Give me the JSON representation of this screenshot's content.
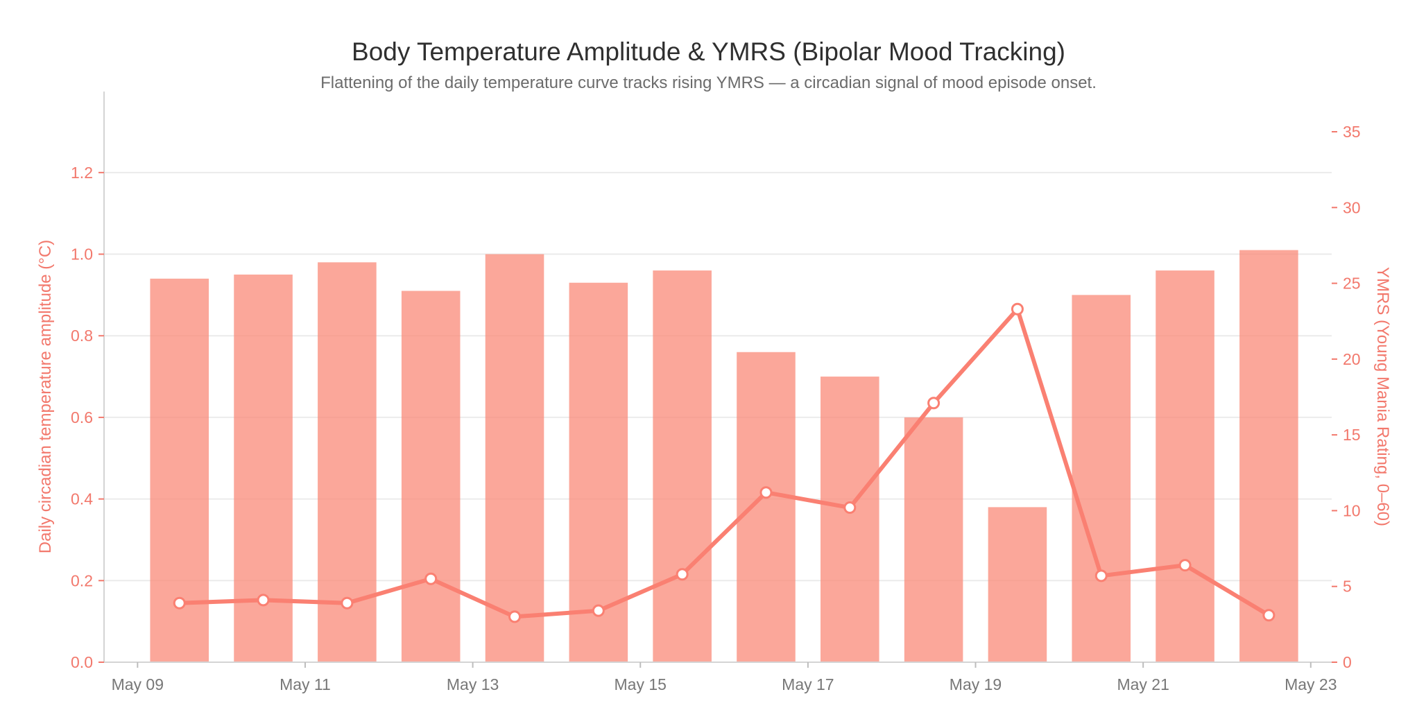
{
  "chart_data": {
    "type": "bar",
    "title": "Body Temperature Amplitude & YMRS (Bipolar Mood Tracking)",
    "subtitle": "Flattening of the daily temperature curve tracks rising YMRS — a circadian signal of mood episode onset.",
    "x_tick_labels": [
      "May 09",
      "May 11",
      "May 13",
      "May 15",
      "May 17",
      "May 19",
      "May 21",
      "May 23"
    ],
    "x_tick_days": [
      9,
      11,
      13,
      15,
      17,
      19,
      21,
      23
    ],
    "x_range_days": [
      8.6,
      23.25
    ],
    "y_left": {
      "label": "Daily circadian temperature amplitude (°C)",
      "ylim": [
        0,
        1.3
      ],
      "ticks": [
        0.0,
        0.2,
        0.4,
        0.6,
        0.8,
        1.0,
        1.2
      ],
      "tick_labels": [
        "0.0",
        "0.2",
        "0.4",
        "0.6",
        "0.8",
        "1.0",
        "1.2"
      ]
    },
    "y_right": {
      "label": "YMRS (Young Mania Rating, 0–60)",
      "ylim": [
        0,
        35
      ],
      "ticks": [
        0,
        5,
        10,
        15,
        20,
        25,
        30,
        35
      ],
      "tick_labels": [
        "0",
        "5",
        "10",
        "15",
        "20",
        "25",
        "30",
        "35"
      ]
    },
    "grid": true,
    "colors": {
      "bar": "#fa8a78",
      "line": "#fa8072",
      "left_axis": "#f2786c",
      "right_axis": "#f2786c",
      "x_tick": "#777777",
      "grid": "#ebebeb"
    },
    "series": [
      {
        "type": "bar",
        "axis": "left",
        "x_days": [
          9.5,
          10.5,
          11.5,
          12.5,
          13.5,
          14.5,
          15.5,
          16.5,
          17.5,
          18.5,
          19.5,
          20.5,
          21.5,
          22.5
        ],
        "values": [
          0.94,
          0.95,
          0.98,
          0.91,
          1.0,
          0.93,
          0.96,
          0.76,
          0.7,
          0.6,
          0.38,
          0.9,
          0.96,
          1.01
        ]
      },
      {
        "type": "line",
        "axis": "right",
        "x_days": [
          9.5,
          10.5,
          11.5,
          12.5,
          13.5,
          14.5,
          15.5,
          16.5,
          17.5,
          18.5,
          19.5,
          20.5,
          21.5,
          22.5
        ],
        "values": [
          3.9,
          4.1,
          3.9,
          5.5,
          3.0,
          3.4,
          5.8,
          11.2,
          10.2,
          17.1,
          23.3,
          5.7,
          6.4,
          3.1
        ]
      }
    ]
  }
}
